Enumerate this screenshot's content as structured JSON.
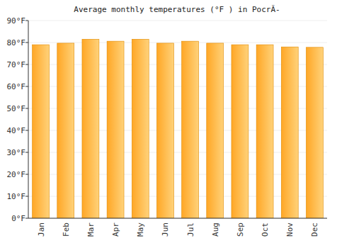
{
  "chart_data": {
    "type": "bar",
    "title": "Average monthly temperatures (°F ) in PocrÃ-",
    "categories": [
      "Jan",
      "Feb",
      "Mar",
      "Apr",
      "May",
      "Jun",
      "Jul",
      "Aug",
      "Sep",
      "Oct",
      "Nov",
      "Dec"
    ],
    "values": [
      79,
      79.7,
      81.5,
      80.6,
      81.5,
      79.7,
      80.6,
      79.7,
      79,
      79,
      78,
      77.8
    ],
    "color": "#ffa726",
    "ylim": [
      0,
      90
    ],
    "yticks": [
      {
        "value": 0,
        "label": "0°F"
      },
      {
        "value": 10,
        "label": "10°F"
      },
      {
        "value": 20,
        "label": "20°F"
      },
      {
        "value": 30,
        "label": "30°F"
      },
      {
        "value": 40,
        "label": "40°F"
      },
      {
        "value": 50,
        "label": "50°F"
      },
      {
        "value": 60,
        "label": "60°F"
      },
      {
        "value": 70,
        "label": "70°F"
      },
      {
        "value": 80,
        "label": "80°F"
      },
      {
        "value": 90,
        "label": "90°F"
      }
    ],
    "grid": true
  }
}
